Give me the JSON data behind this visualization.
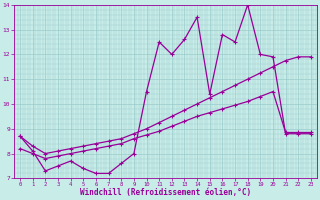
{
  "xlabel": "Windchill (Refroidissement éolien,°C)",
  "background_color": "#c8ece8",
  "line_color": "#990099",
  "xlim": [
    -0.5,
    23.5
  ],
  "ylim": [
    7,
    14
  ],
  "xticks": [
    0,
    1,
    2,
    3,
    4,
    5,
    6,
    7,
    8,
    9,
    10,
    11,
    12,
    13,
    14,
    15,
    16,
    17,
    18,
    19,
    20,
    21,
    22,
    23
  ],
  "yticks": [
    7,
    8,
    9,
    10,
    11,
    12,
    13,
    14
  ],
  "grid_color": "#99cccc",
  "series1_x": [
    0,
    1,
    2,
    3,
    4,
    5,
    6,
    7,
    8,
    9,
    10,
    11,
    12,
    13,
    14,
    15,
    16,
    17,
    18,
    19,
    20,
    21,
    22,
    23
  ],
  "series1_y": [
    8.7,
    8.1,
    7.3,
    7.5,
    7.7,
    7.4,
    7.2,
    7.2,
    7.6,
    8.0,
    10.5,
    12.5,
    12.0,
    12.6,
    13.5,
    10.4,
    12.8,
    12.5,
    14.0,
    12.0,
    11.9,
    8.8,
    8.8,
    8.8
  ],
  "series2_x": [
    0,
    1,
    2,
    3,
    4,
    5,
    6,
    7,
    8,
    9,
    10,
    11,
    12,
    13,
    14,
    15,
    16,
    17,
    18,
    19,
    20,
    21,
    22,
    23
  ],
  "series2_y": [
    8.7,
    8.3,
    8.0,
    8.1,
    8.2,
    8.3,
    8.4,
    8.5,
    8.6,
    8.8,
    9.0,
    9.25,
    9.5,
    9.75,
    10.0,
    10.25,
    10.5,
    10.75,
    11.0,
    11.25,
    11.5,
    11.75,
    11.9,
    11.9
  ],
  "series3_x": [
    0,
    1,
    2,
    3,
    4,
    5,
    6,
    7,
    8,
    9,
    10,
    11,
    12,
    13,
    14,
    15,
    16,
    17,
    18,
    19,
    20,
    21,
    22,
    23
  ],
  "series3_y": [
    8.2,
    8.0,
    7.8,
    7.9,
    8.0,
    8.1,
    8.2,
    8.3,
    8.4,
    8.6,
    8.75,
    8.9,
    9.1,
    9.3,
    9.5,
    9.65,
    9.8,
    9.95,
    10.1,
    10.3,
    10.5,
    8.85,
    8.85,
    8.85
  ]
}
